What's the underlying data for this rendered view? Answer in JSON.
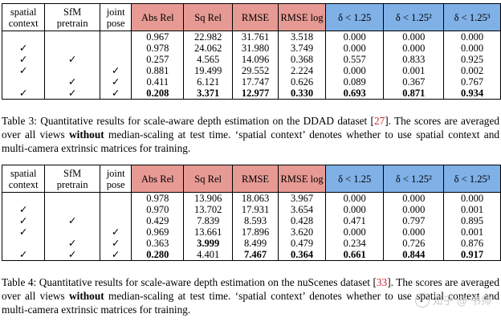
{
  "tables": [
    {
      "headers": [
        "spatial context",
        "SfM pretrain",
        "joint pose",
        "Abs Rel",
        "Sq Rel",
        "RMSE",
        "RMSE log",
        "δ < 1.25",
        "δ < 1.25²",
        "δ < 1.25³"
      ],
      "rows": [
        [
          "",
          "",
          "",
          "0.967",
          "22.982",
          "31.761",
          "3.518",
          "0.000",
          "0.000",
          "0.000"
        ],
        [
          "✓",
          "",
          "",
          "0.978",
          "24.062",
          "31.980",
          "3.749",
          "0.000",
          "0.000",
          "0.000"
        ],
        [
          "✓",
          "✓",
          "",
          "0.257",
          "4.565",
          "14.096",
          "0.368",
          "0.557",
          "0.833",
          "0.925"
        ],
        [
          "✓",
          "",
          "✓",
          "0.881",
          "19.499",
          "29.552",
          "2.224",
          "0.000",
          "0.001",
          "0.002"
        ],
        [
          "",
          "✓",
          "✓",
          "0.411",
          "6.121",
          "17.747",
          "0.626",
          "0.089",
          "0.367",
          "0.767"
        ],
        [
          "✓",
          "✓",
          "✓",
          "0.208",
          "3.371",
          "12.977",
          "0.330",
          "0.693",
          "0.871",
          "0.934"
        ]
      ],
      "bold": [
        [
          5,
          3
        ],
        [
          5,
          4
        ],
        [
          5,
          5
        ],
        [
          5,
          6
        ],
        [
          5,
          7
        ],
        [
          5,
          8
        ],
        [
          5,
          9
        ]
      ],
      "caption": {
        "prefix": "Table 3: Quantitative results for scale-aware depth estimation on the DDAD dataset [",
        "cite": "27",
        "mid": "]. The scores are averaged over all views ",
        "bold": "without",
        "suffix": " median-scaling at test time. ‘spatial context’ denotes whether to use spatial context and multi-camera extrinsic matrices for training."
      }
    },
    {
      "headers": [
        "spatial context",
        "SfM pretrain",
        "joint pose",
        "Abs Rel",
        "Sq Rel",
        "RMSE",
        "RMSE log",
        "δ < 1.25",
        "δ < 1.25²",
        "δ < 1.25³"
      ],
      "rows": [
        [
          "",
          "",
          "",
          "0.978",
          "13.906",
          "18.063",
          "3.967",
          "0.000",
          "0.000",
          "0.000"
        ],
        [
          "✓",
          "",
          "",
          "0.970",
          "13.702",
          "17.931",
          "3.654",
          "0.000",
          "0.000",
          "0.001"
        ],
        [
          "✓",
          "✓",
          "",
          "0.429",
          "7.839",
          "8.593",
          "0.428",
          "0.471",
          "0.797",
          "0.895"
        ],
        [
          "✓",
          "",
          "✓",
          "0.969",
          "13.661",
          "17.896",
          "3.620",
          "0.000",
          "0.000",
          "0.001"
        ],
        [
          "",
          "✓",
          "✓",
          "0.363",
          "3.999",
          "8.499",
          "0.479",
          "0.234",
          "0.726",
          "0.876"
        ],
        [
          "✓",
          "✓",
          "✓",
          "0.280",
          "4.401",
          "7.467",
          "0.364",
          "0.661",
          "0.844",
          "0.917"
        ]
      ],
      "bold": [
        [
          4,
          4
        ],
        [
          5,
          3
        ],
        [
          5,
          5
        ],
        [
          5,
          6
        ],
        [
          5,
          7
        ],
        [
          5,
          8
        ],
        [
          5,
          9
        ]
      ],
      "caption": {
        "prefix": "Table 4: Quantitative results for scale-aware depth estimation on the nuScenes dataset [",
        "cite": "33",
        "mid": "]. The scores are averaged over all views ",
        "bold": "without",
        "suffix": " median-scaling at test time. ‘spatial context’ denotes whether to use spatial context and multi-camera extrinsic matrices for training."
      }
    }
  ],
  "watermark": "知乎 @ 书帅",
  "colors": {
    "error_header": "#e79a94",
    "accuracy_header": "#7fb0e6",
    "citation": "#c8282c"
  }
}
